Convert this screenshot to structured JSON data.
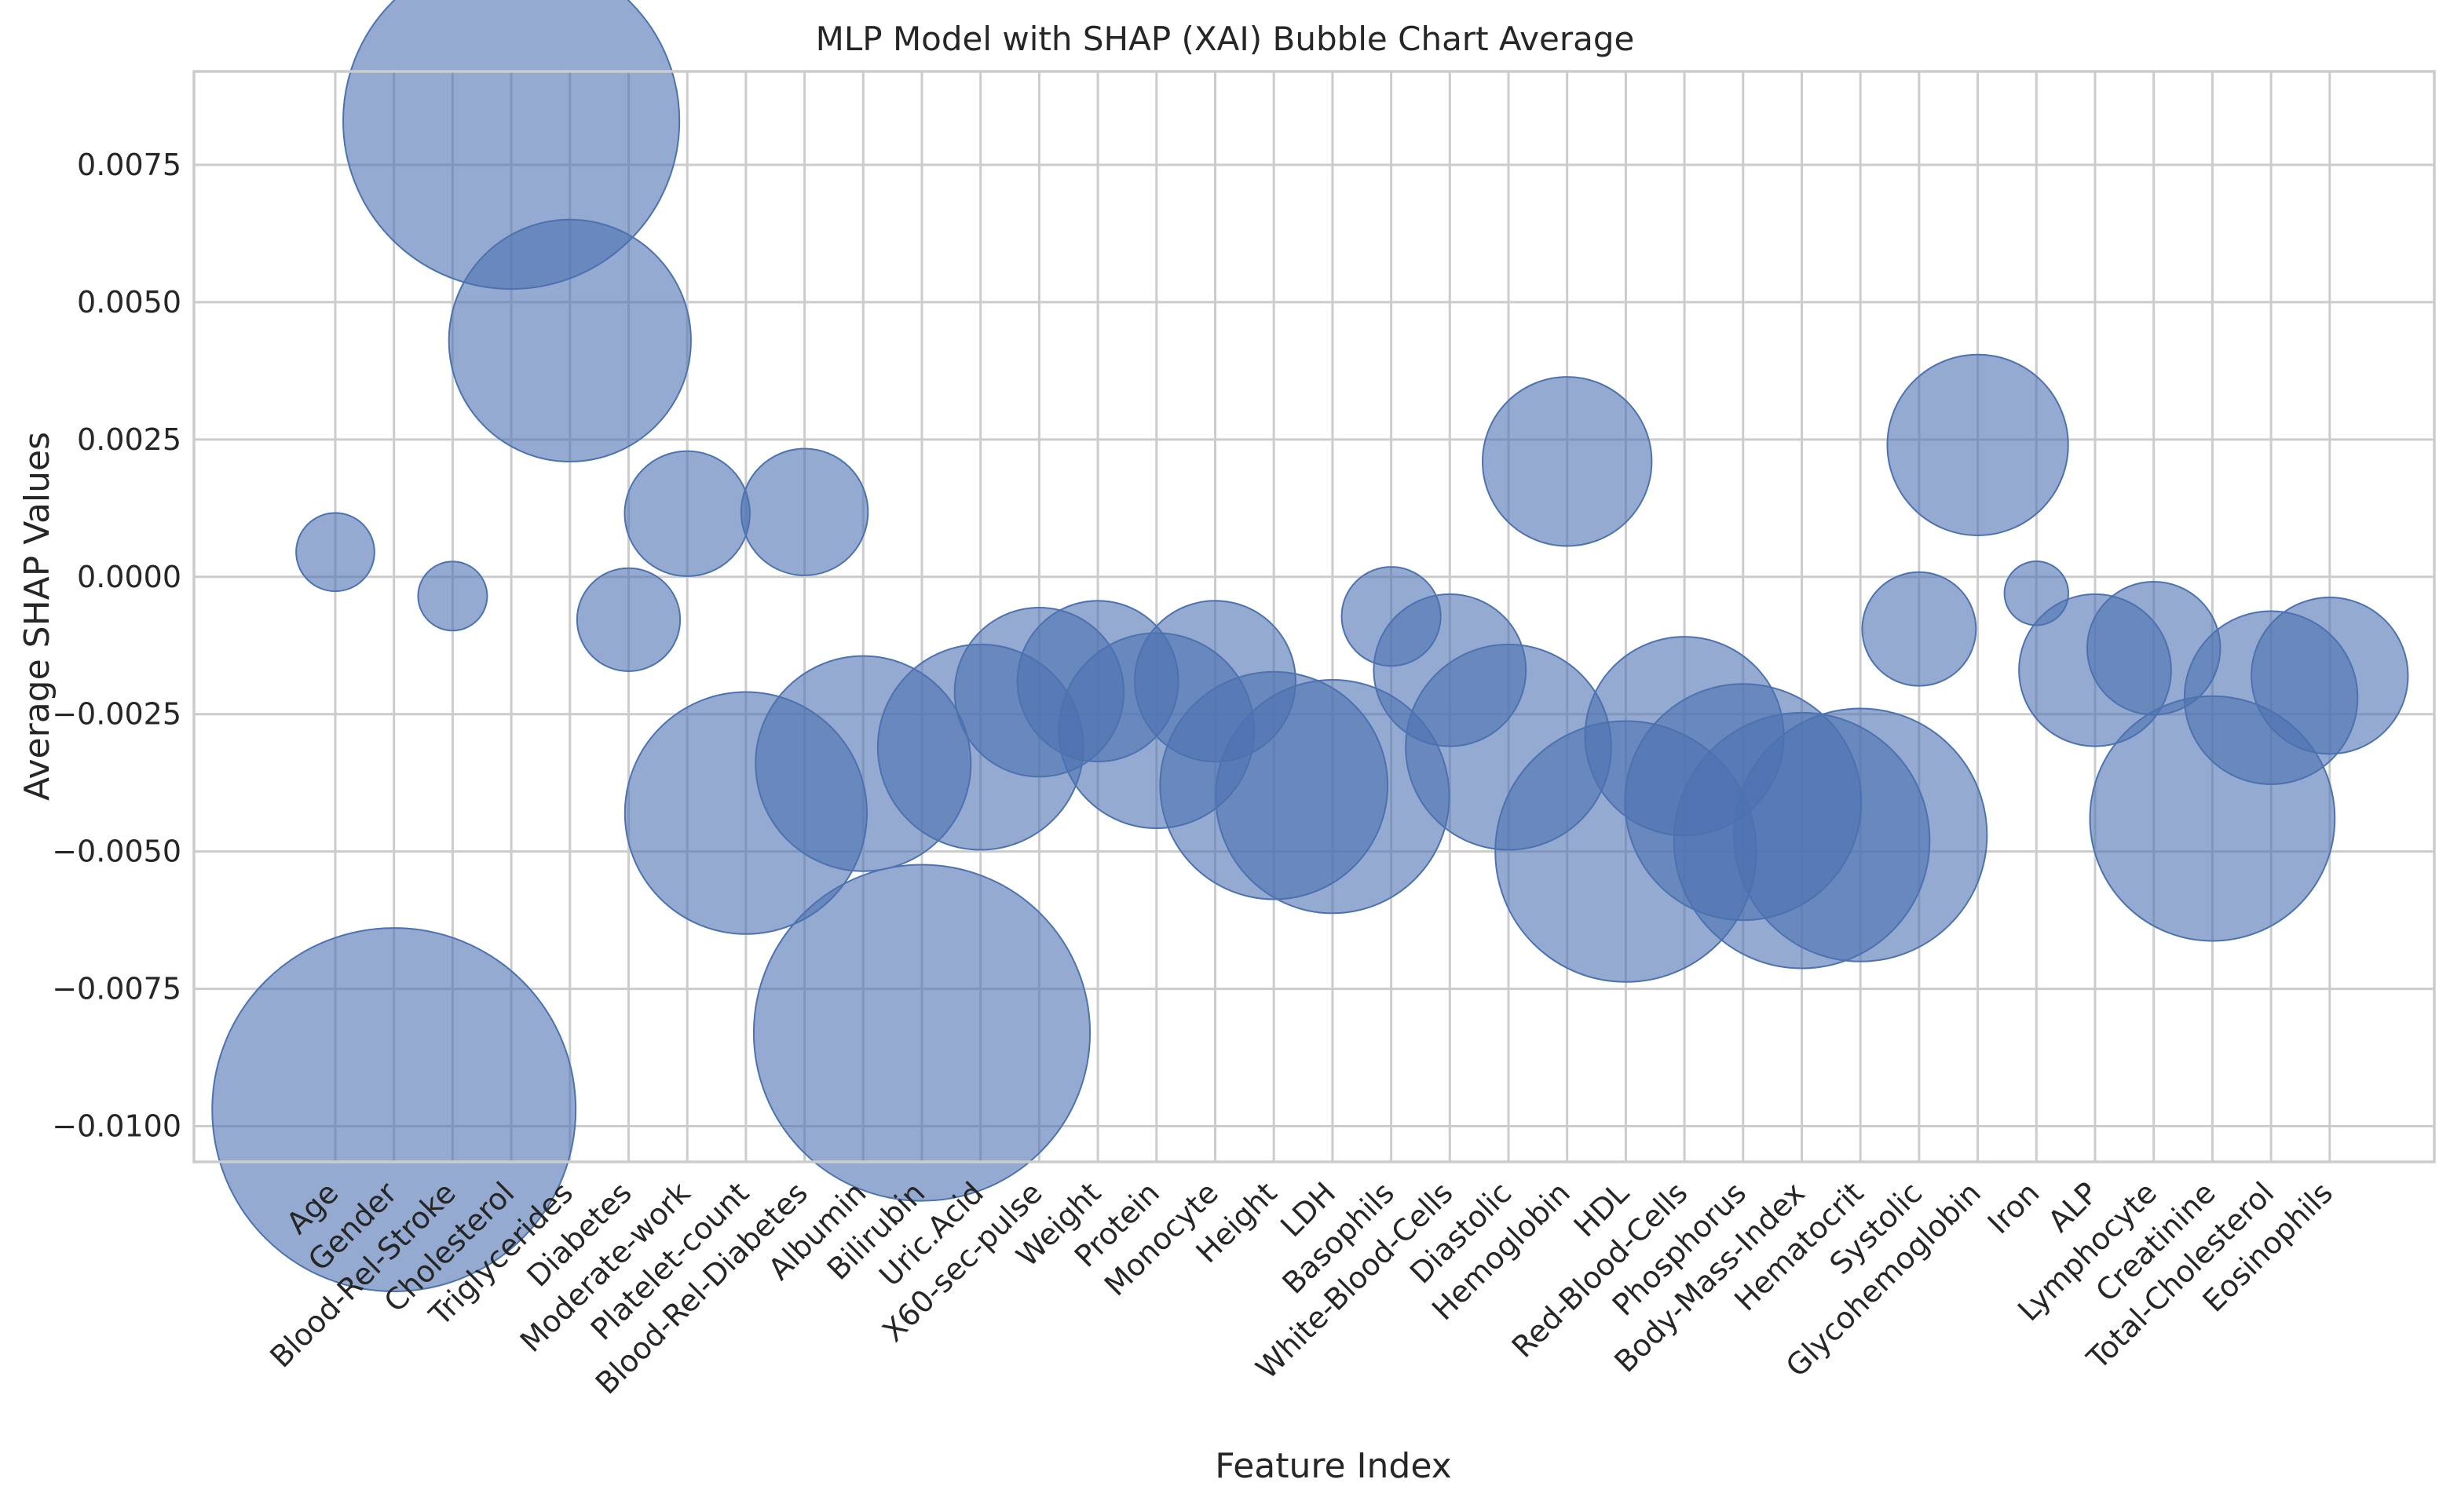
{
  "chart_data": {
    "type": "scatter",
    "title": "MLP Model with SHAP (XAI) Bubble Chart Average",
    "xlabel": "Feature Index",
    "ylabel": "Average SHAP Values",
    "grid": true,
    "ylim": [
      -0.01065,
      0.0092
    ],
    "yticks": [
      -0.01,
      -0.0075,
      -0.005,
      -0.0025,
      0.0,
      0.0025,
      0.005,
      0.0075
    ],
    "ytick_labels": [
      "−0.0100",
      "−0.0075",
      "−0.0050",
      "−0.0025",
      "0.0000",
      "0.0025",
      "0.0050",
      "0.0075"
    ],
    "bubble_color": "#4c72b0",
    "bubble_size_note": "bubble area proportional to |value|",
    "categories": [
      "Age",
      "Gender",
      "Blood-Rel-Stroke",
      "Cholesterol",
      "Triglycerides",
      "Diabetes",
      "Moderate-work",
      "Platelet-count",
      "Blood-Rel-Diabetes",
      "Albumin",
      "Bilirubin",
      "Uric.Acid",
      "X60-sec-pulse",
      "Weight",
      "Protein",
      "Monocyte",
      "Height",
      "LDH",
      "Basophils",
      "White-Blood-Cells",
      "Diastolic",
      "Hemoglobin",
      "HDL",
      "Red-Blood-Cells",
      "Phosphorus",
      "Body-Mass-Index",
      "Hematocrit",
      "Systolic",
      "Glycohemoglobin",
      "Iron",
      "ALP",
      "Lymphocyte",
      "Creatinine",
      "Total-Cholesterol",
      "Eosinophils"
    ],
    "values": [
      0.00045,
      -0.0097,
      -0.00035,
      0.0083,
      0.0043,
      -0.00078,
      0.00115,
      -0.0043,
      0.00118,
      -0.0034,
      -0.0083,
      -0.0031,
      -0.0021,
      -0.0019,
      -0.0028,
      -0.0019,
      -0.0038,
      -0.004,
      -0.00072,
      -0.0017,
      -0.0031,
      0.0021,
      -0.005,
      -0.0029,
      -0.0041,
      -0.0048,
      -0.0047,
      -0.00095,
      0.0024,
      -0.0003,
      -0.0017,
      -0.0013,
      -0.0044,
      -0.0022,
      -0.0018
    ]
  }
}
